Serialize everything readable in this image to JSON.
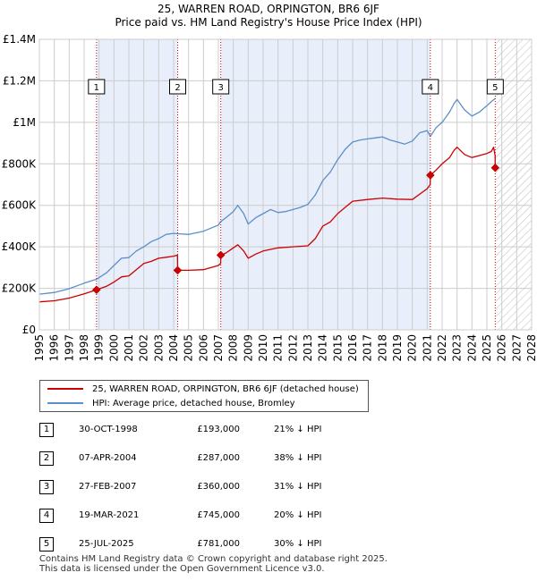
{
  "title_line1": "25, WARREN ROAD, ORPINGTON, BR6 6JF",
  "title_line2": "Price paid vs. HM Land Registry's House Price Index (HPI)",
  "colors": {
    "property": "#cc0000",
    "hpi": "#5b8fc9",
    "shade": "#e8eefa",
    "grid": "#cccccc"
  },
  "legend": {
    "property_label": "25, WARREN ROAD, ORPINGTON, BR6 6JF (detached house)",
    "hpi_label": "HPI: Average price, detached house, Bromley"
  },
  "sales": [
    {
      "num": "1",
      "date": "30-OCT-1998",
      "price": "£193,000",
      "hpi": "21% ↓ HPI"
    },
    {
      "num": "2",
      "date": "07-APR-2004",
      "price": "£287,000",
      "hpi": "38% ↓ HPI"
    },
    {
      "num": "3",
      "date": "27-FEB-2007",
      "price": "£360,000",
      "hpi": "31% ↓ HPI"
    },
    {
      "num": "4",
      "date": "19-MAR-2021",
      "price": "£745,000",
      "hpi": "20% ↓ HPI"
    },
    {
      "num": "5",
      "date": "25-JUL-2025",
      "price": "£781,000",
      "hpi": "30% ↓ HPI"
    }
  ],
  "footer_line1": "Contains HM Land Registry data © Crown copyright and database right 2025.",
  "footer_line2": "This data is licensed under the Open Government Licence v3.0.",
  "chart_data": {
    "type": "line",
    "title": "25, WARREN ROAD, ORPINGTON, BR6 6JF",
    "subtitle": "Price paid vs. HM Land Registry's House Price Index (HPI)",
    "xlabel": "",
    "ylabel": "",
    "xlim": [
      1995,
      2028
    ],
    "ylim": [
      0,
      1400000
    ],
    "x_ticks": [
      1995,
      1996,
      1997,
      1998,
      1999,
      2000,
      2001,
      2002,
      2003,
      2004,
      2005,
      2006,
      2007,
      2008,
      2009,
      2010,
      2011,
      2012,
      2013,
      2014,
      2015,
      2016,
      2017,
      2018,
      2019,
      2020,
      2021,
      2022,
      2023,
      2024,
      2025,
      2026,
      2027,
      2028
    ],
    "y_ticks": [
      {
        "value": 0,
        "label": "£0"
      },
      {
        "value": 200000,
        "label": "£200K"
      },
      {
        "value": 400000,
        "label": "£400K"
      },
      {
        "value": 600000,
        "label": "£600K"
      },
      {
        "value": 800000,
        "label": "£800K"
      },
      {
        "value": 1000000,
        "label": "£1M"
      },
      {
        "value": 1200000,
        "label": "£1.2M"
      },
      {
        "value": 1400000,
        "label": "£1.4M"
      }
    ],
    "grid": true,
    "shaded_ranges": [
      [
        1998.83,
        2004.27
      ],
      [
        2007.16,
        2021.21
      ]
    ],
    "hatched_range": [
      2025.56,
      2028
    ],
    "series": [
      {
        "name": "HPI: Average price, detached house, Bromley",
        "color": "#5b8fc9",
        "x": [
          1995,
          1996,
          1997,
          1998,
          1998.83,
          1999.5,
          2000,
          2000.5,
          2001,
          2001.5,
          2002,
          2002.5,
          2003,
          2003.5,
          2004,
          2004.27,
          2005,
          2006,
          2007,
          2007.16,
          2007.5,
          2008,
          2008.3,
          2008.7,
          2009,
          2009.5,
          2010,
          2010.5,
          2011,
          2011.5,
          2012,
          2012.5,
          2013,
          2013.5,
          2014,
          2014.5,
          2015,
          2015.5,
          2016,
          2016.5,
          2017,
          2017.5,
          2018,
          2018.5,
          2019,
          2019.5,
          2020,
          2020.5,
          2021,
          2021.21,
          2021.6,
          2022,
          2022.5,
          2022.8,
          2023,
          2023.5,
          2024,
          2024.5,
          2025,
          2025.3,
          2025.56
        ],
        "values": [
          172000,
          180000,
          198000,
          225000,
          244000,
          275000,
          310000,
          345000,
          348000,
          380000,
          400000,
          425000,
          440000,
          460000,
          465000,
          463000,
          460000,
          475000,
          505000,
          522000,
          540000,
          570000,
          600000,
          560000,
          510000,
          540000,
          560000,
          580000,
          565000,
          570000,
          580000,
          590000,
          605000,
          650000,
          720000,
          760000,
          820000,
          870000,
          905000,
          915000,
          920000,
          925000,
          930000,
          915000,
          905000,
          895000,
          910000,
          950000,
          960000,
          932000,
          975000,
          1000000,
          1050000,
          1090000,
          1110000,
          1060000,
          1030000,
          1050000,
          1080000,
          1100000,
          1115000
        ]
      },
      {
        "name": "25, WARREN ROAD, ORPINGTON, BR6 6JF (detached house)",
        "color": "#cc0000",
        "x": [
          1995,
          1996,
          1997,
          1998,
          1998.83,
          1999.5,
          2000,
          2000.5,
          2001,
          2001.5,
          2002,
          2002.5,
          2003,
          2003.5,
          2004,
          2004.26,
          2004.27,
          2005,
          2006,
          2007,
          2007.15,
          2007.16,
          2007.5,
          2008,
          2008.3,
          2008.7,
          2009,
          2009.5,
          2010,
          2011,
          2012,
          2013,
          2013.5,
          2014,
          2014.5,
          2015,
          2015.5,
          2016,
          2017,
          2018,
          2019,
          2020,
          2021,
          2021.2,
          2021.21,
          2021.6,
          2022,
          2022.5,
          2022.8,
          2023,
          2023.5,
          2024,
          2024.5,
          2025,
          2025.3,
          2025.45,
          2025.55,
          2025.56
        ],
        "values": [
          135000,
          140000,
          153000,
          173000,
          193000,
          210000,
          230000,
          255000,
          260000,
          290000,
          320000,
          330000,
          345000,
          350000,
          355000,
          360000,
          287000,
          287000,
          290000,
          310000,
          320000,
          360000,
          370000,
          395000,
          410000,
          380000,
          345000,
          365000,
          380000,
          395000,
          400000,
          405000,
          440000,
          500000,
          520000,
          560000,
          590000,
          620000,
          628000,
          635000,
          630000,
          628000,
          680000,
          700000,
          745000,
          770000,
          800000,
          830000,
          865000,
          880000,
          845000,
          830000,
          840000,
          850000,
          860000,
          880000,
          840000,
          781000
        ]
      }
    ],
    "sale_points": [
      {
        "num": "1",
        "x": 1998.83,
        "value": 193000
      },
      {
        "num": "2",
        "x": 2004.27,
        "value": 287000
      },
      {
        "num": "3",
        "x": 2007.16,
        "value": 360000
      },
      {
        "num": "4",
        "x": 2021.21,
        "value": 745000
      },
      {
        "num": "5",
        "x": 2025.56,
        "value": 781000
      }
    ]
  }
}
